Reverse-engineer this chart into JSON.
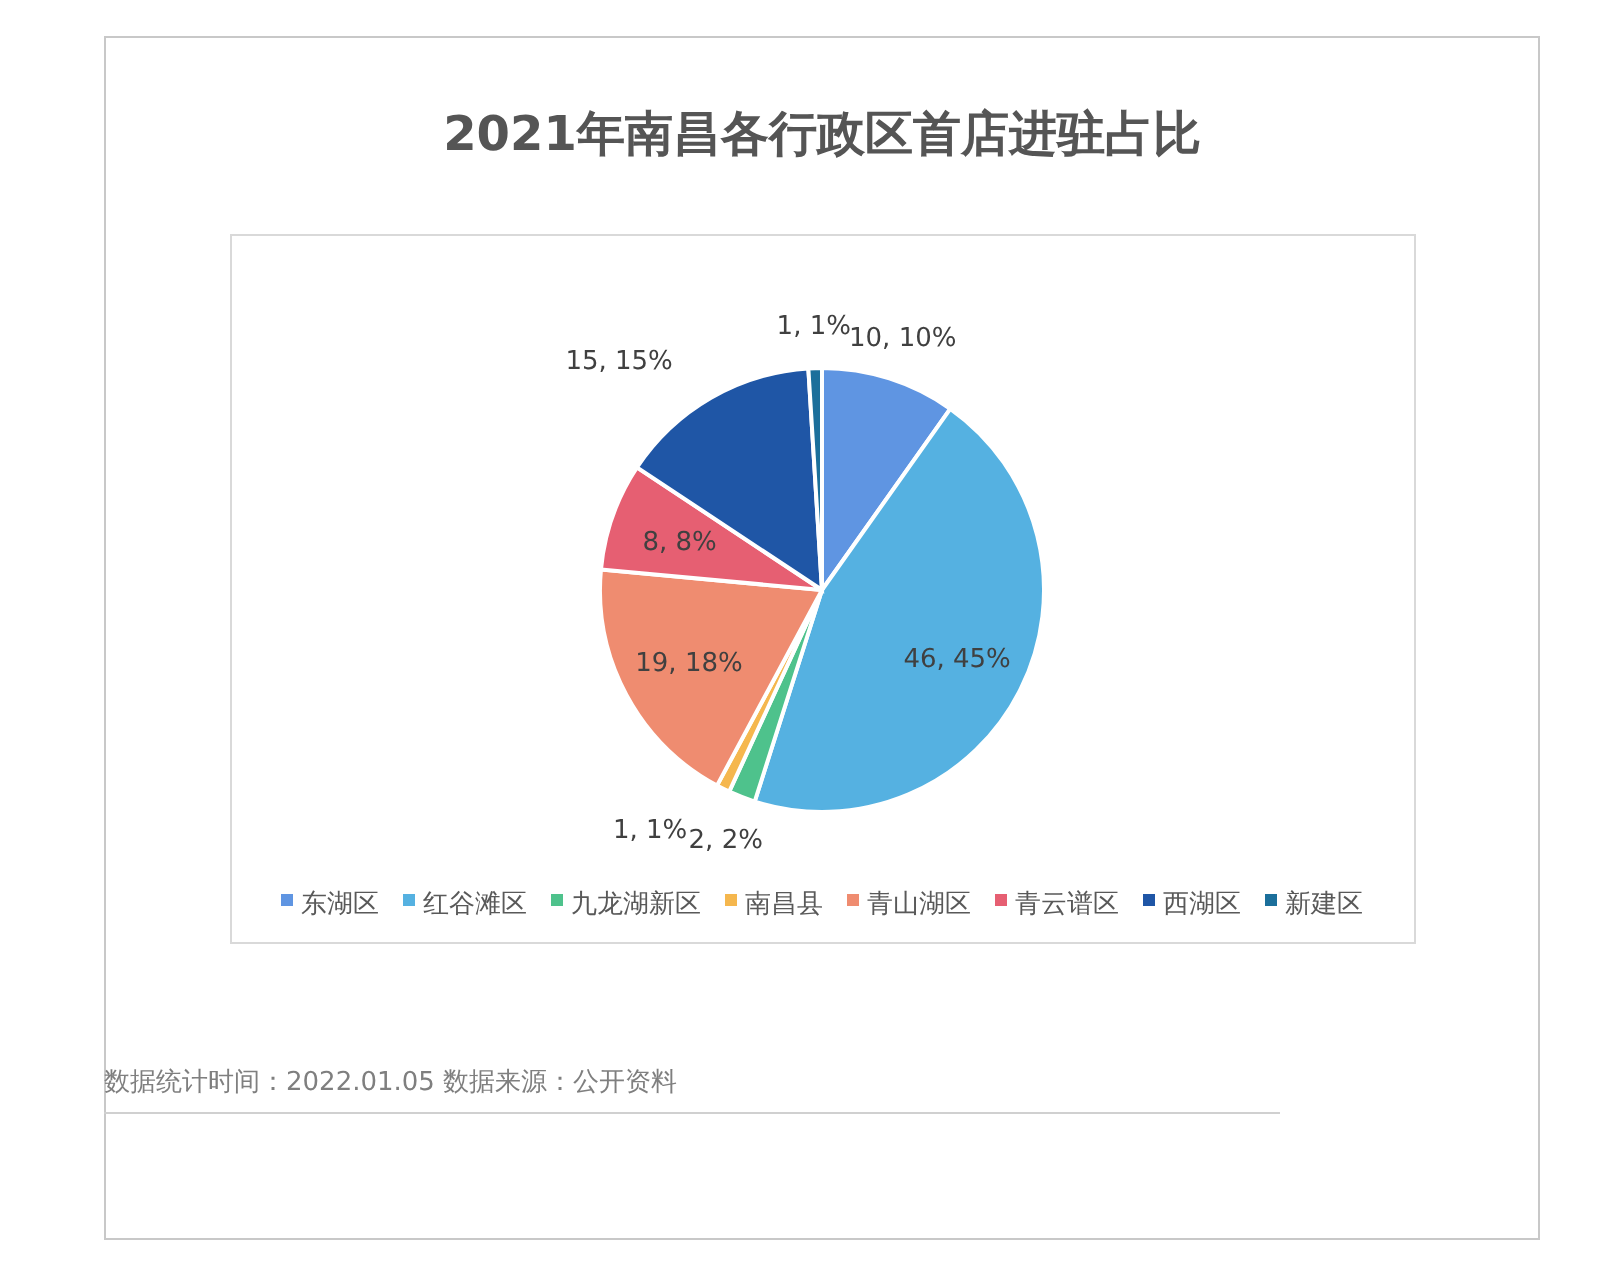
{
  "chart_data": {
    "type": "pie",
    "title": "2021年南昌各行政区首店进驻占比",
    "categories": [
      "东湖区",
      "红谷滩区",
      "九龙湖新区",
      "南昌县",
      "青山湖区",
      "青云谱区",
      "西湖区",
      "新建区"
    ],
    "values": [
      10,
      46,
      2,
      1,
      19,
      8,
      15,
      1
    ],
    "value_labels": [
      "10, 10%",
      "46, 45%",
      "2, 2%",
      "1, 1%",
      "19, 18%",
      "8, 8%",
      "15, 15%",
      "1, 1%"
    ],
    "colors": [
      "#5f95e2",
      "#55b1e1",
      "#4ec28c",
      "#f5b74e",
      "#ef8c70",
      "#e65f72",
      "#1f56a6",
      "#1b6f9b"
    ],
    "legend": "bottom",
    "annotations": [
      "数据统计时间：2022.01.05  数据来源：公开资料"
    ]
  }
}
